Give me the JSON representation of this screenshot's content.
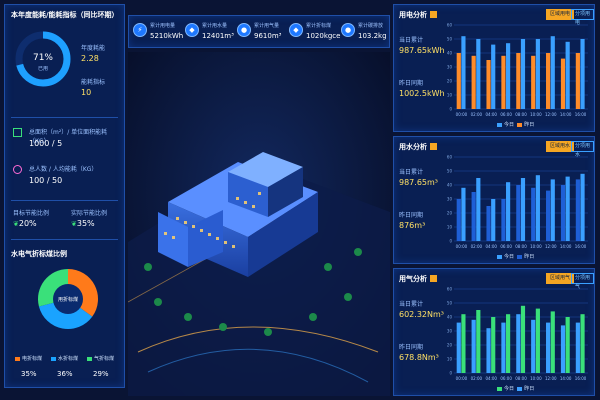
{
  "left": {
    "title": "本年度能耗/能耗指标（同比环期）",
    "gauge": {
      "percent": 71,
      "percent_label": "71%",
      "sub_label": "已用"
    },
    "annual_used_label": "年度耗能",
    "annual_used_value": "2.28",
    "target_label": "能耗指标",
    "target_value": "10",
    "area_label": "总面积（m²）/ 单位面积能耗（KG）",
    "area_value": "1000 / 5",
    "people_label": "总人数 / 人均能耗（KG）",
    "people_value": "100 / 50",
    "yoy_label": "目标节能比例",
    "yoy_value": "20%",
    "actual_label": "实际节能比例",
    "actual_value": "35%",
    "pie_title": "水电气折标煤比例",
    "pie_center": "用折标煤",
    "pie_legend": [
      {
        "label": "电折标煤",
        "value": "35%",
        "color": "#ff7a1a",
        "fraction": 0.35
      },
      {
        "label": "水折标煤",
        "value": "36%",
        "color": "#1aa3ff",
        "fraction": 0.36
      },
      {
        "label": "气折标煤",
        "value": "29%",
        "color": "#3ae07a",
        "fraction": 0.29
      }
    ]
  },
  "kpi": [
    {
      "label": "累计用电量",
      "value": "5210kWh",
      "icon": "⚡"
    },
    {
      "label": "累计用水量",
      "value": "12401m³",
      "icon": "◆"
    },
    {
      "label": "累计用气量",
      "value": "9610m³",
      "icon": "●"
    },
    {
      "label": "累计折标煤",
      "value": "1020kgce",
      "icon": "◆"
    },
    {
      "label": "累计碳排放",
      "value": "103.2kg",
      "icon": "●"
    }
  ],
  "panels": [
    {
      "title": "用电分析",
      "tab_a": "区域用电",
      "tab_b": "分项用电",
      "stat1_label": "当日累计",
      "stat1_value": "987.65kWh",
      "stat2_label": "昨日同期",
      "stat2_value": "1002.5kWh",
      "today_color": "#3aa0ff",
      "yday_color": "#ff8c2a",
      "legend_today": "今日",
      "legend_yday": "昨日"
    },
    {
      "title": "用水分析",
      "tab_a": "区域用水",
      "tab_b": "分项用水",
      "stat1_label": "当日累计",
      "stat1_value": "987.65m³",
      "stat2_label": "昨日同期",
      "stat2_value": "876m³",
      "today_color": "#3aa0ff",
      "yday_color": "#1e5fd6",
      "legend_today": "今日",
      "legend_yday": "昨日"
    },
    {
      "title": "用气分析",
      "tab_a": "区域用气",
      "tab_b": "分项用气",
      "stat1_label": "当日累计",
      "stat1_value": "602.32Nm³",
      "stat2_label": "昨日同期",
      "stat2_value": "678.8Nm³",
      "today_color": "#3ae07a",
      "yday_color": "#3aa0ff",
      "legend_today": "今日",
      "legend_yday": "昨日"
    }
  ],
  "chart_data": [
    {
      "type": "bar",
      "title": "用电分析",
      "categories": [
        "00:00",
        "02:00",
        "04:00",
        "06:00",
        "08:00",
        "10:00",
        "12:00",
        "14:00",
        "16:00"
      ],
      "ylim": [
        0,
        60
      ],
      "yticks": [
        "60",
        "50",
        "40",
        "30",
        "20",
        "10",
        "0"
      ],
      "series": [
        {
          "name": "今日",
          "values": [
            52,
            50,
            46,
            47,
            50,
            50,
            52,
            48,
            50
          ]
        },
        {
          "name": "昨日",
          "values": [
            40,
            38,
            35,
            38,
            40,
            38,
            40,
            36,
            40
          ]
        }
      ]
    },
    {
      "type": "bar",
      "title": "用水分析",
      "categories": [
        "00:00",
        "02:00",
        "04:00",
        "06:00",
        "08:00",
        "10:00",
        "12:00",
        "14:00",
        "16:00"
      ],
      "ylim": [
        0,
        60
      ],
      "yticks": [
        "60",
        "50",
        "40",
        "30",
        "20",
        "10",
        "0"
      ],
      "series": [
        {
          "name": "今日",
          "values": [
            38,
            45,
            30,
            42,
            45,
            47,
            44,
            46,
            48
          ]
        },
        {
          "name": "昨日",
          "values": [
            30,
            35,
            25,
            30,
            40,
            38,
            36,
            40,
            44
          ]
        }
      ]
    },
    {
      "type": "bar",
      "title": "用气分析",
      "categories": [
        "00:00",
        "02:00",
        "04:00",
        "06:00",
        "08:00",
        "10:00",
        "12:00",
        "14:00",
        "16:00"
      ],
      "ylim": [
        0,
        60
      ],
      "yticks": [
        "60",
        "50",
        "40",
        "30",
        "20",
        "10",
        "0"
      ],
      "series": [
        {
          "name": "今日",
          "values": [
            42,
            45,
            40,
            42,
            48,
            46,
            44,
            40,
            42
          ]
        },
        {
          "name": "昨日",
          "values": [
            36,
            38,
            32,
            36,
            42,
            38,
            36,
            34,
            36
          ]
        }
      ]
    }
  ]
}
